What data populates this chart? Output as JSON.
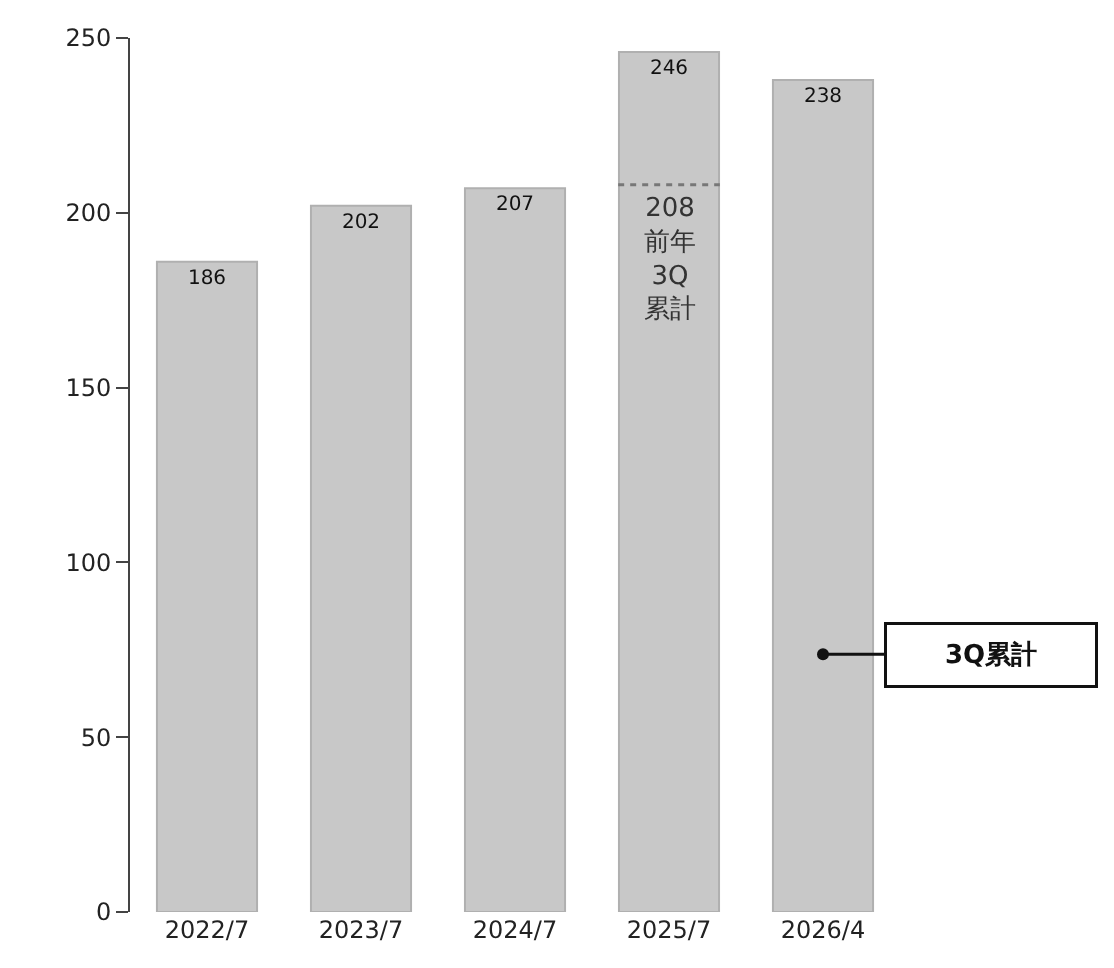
{
  "chart_data": {
    "type": "bar",
    "categories": [
      "2022/7",
      "2023/7",
      "2024/7",
      "2025/7",
      "2026/4"
    ],
    "values": [
      186,
      202,
      207,
      246,
      238
    ],
    "color": "#c8c8c8",
    "ylim": [
      0,
      250
    ],
    "yticks": [
      0,
      50,
      100,
      150,
      200,
      250
    ],
    "data_labels": true,
    "annotations": [
      "208\n前年\n3Q\n累計",
      "3Q累計"
    ]
  }
}
